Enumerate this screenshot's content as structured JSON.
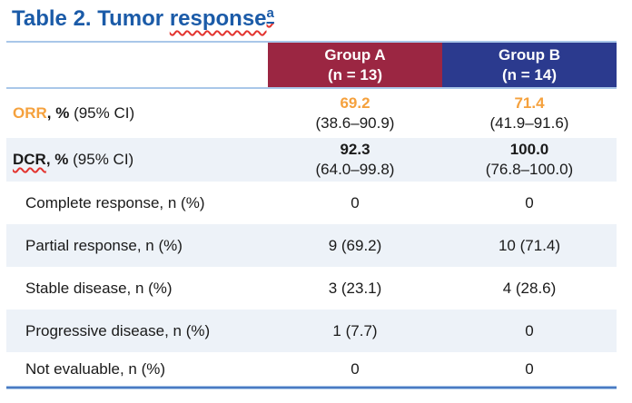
{
  "title": {
    "prefix": "Table 2. Tumor ",
    "misspelled_word": "response",
    "superscript": "a"
  },
  "colors": {
    "title_blue": "#1B5BA8",
    "group_a_maroon": "#9B2642",
    "group_b_blue": "#2B3A8E",
    "orr_orange": "#F5A13D",
    "row_shade": "#EDF2F8",
    "header_line": "#A9C7E9",
    "bottom_line": "#4A7AC2",
    "squiggle_red": "#E3342F",
    "text": "#1A1A1A"
  },
  "table": {
    "columns": [
      {
        "label": "",
        "n": ""
      },
      {
        "label": "Group A",
        "n": "(n = 13)"
      },
      {
        "label": "Group B",
        "n": "(n = 14)"
      }
    ],
    "rows": [
      {
        "label": {
          "accent": "ORR",
          "bold": ", %",
          "normal": " (95% CI)"
        },
        "groupA": {
          "main": "69.2",
          "ci": "(38.6–90.9)"
        },
        "groupB": {
          "main": "71.4",
          "ci": "(41.9–91.6)"
        }
      },
      {
        "label": {
          "accent": "DCR",
          "bold": ", %",
          "normal": " (95% CI)"
        },
        "groupA": {
          "main": "92.3",
          "ci": "(64.0–99.8)"
        },
        "groupB": {
          "main": "100.0",
          "ci": "(76.8–100.0)"
        }
      },
      {
        "label": {
          "text": "Complete response, n (%)"
        },
        "groupA": {
          "main": "0"
        },
        "groupB": {
          "main": "0"
        }
      },
      {
        "label": {
          "text": "Partial response, n (%)"
        },
        "groupA": {
          "main": "9 (69.2)"
        },
        "groupB": {
          "main": "10 (71.4)"
        }
      },
      {
        "label": {
          "text": "Stable disease, n (%)"
        },
        "groupA": {
          "main": "3 (23.1)"
        },
        "groupB": {
          "main": "4 (28.6)"
        }
      },
      {
        "label": {
          "text": "Progressive disease, n (%)"
        },
        "groupA": {
          "main": "1 (7.7)"
        },
        "groupB": {
          "main": "0"
        }
      },
      {
        "label": {
          "text": "Not evaluable, n (%)"
        },
        "groupA": {
          "main": "0"
        },
        "groupB": {
          "main": "0"
        }
      }
    ]
  }
}
